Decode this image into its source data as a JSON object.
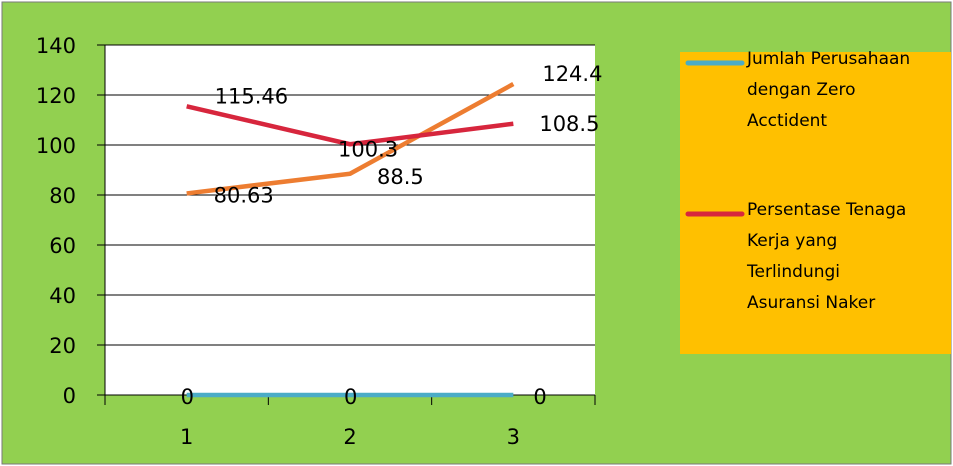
{
  "chart_data": {
    "type": "line",
    "categories": [
      "1",
      "2",
      "3"
    ],
    "ylim": [
      0,
      140
    ],
    "yticks": [
      0,
      20,
      40,
      60,
      80,
      100,
      120,
      140
    ],
    "grid": true,
    "legend_position": "right",
    "colors": {
      "background": "#92d050",
      "plot_area": "#ffffff",
      "legend_background": "#ffc000",
      "gridline": "#000000"
    },
    "series": [
      {
        "name": "Jumlah Perusahaan dengan Zero Acctident",
        "color": "#4bacc6",
        "values": [
          0,
          0,
          0
        ],
        "labels": [
          "0",
          "0",
          "0"
        ]
      },
      {
        "name": "Persentase Tenaga Kerja yang Terlindungi Asuransi Naker",
        "color": "#d7263d",
        "values": [
          115.46,
          100.3,
          108.5
        ],
        "labels": [
          "115.46",
          "100.3",
          "108.5"
        ]
      },
      {
        "name": "",
        "color": "#ed7d31",
        "values": [
          80.63,
          88.5,
          124.4
        ],
        "labels": [
          "80.63",
          "88.5",
          "124.4"
        ]
      }
    ],
    "legend_lines": [
      [
        "Jumlah Perusahaan",
        "dengan Zero",
        "Acctident"
      ],
      [
        "Persentase Tenaga",
        "Kerja yang",
        "Terlindungi",
        "Asuransi Naker"
      ]
    ]
  }
}
